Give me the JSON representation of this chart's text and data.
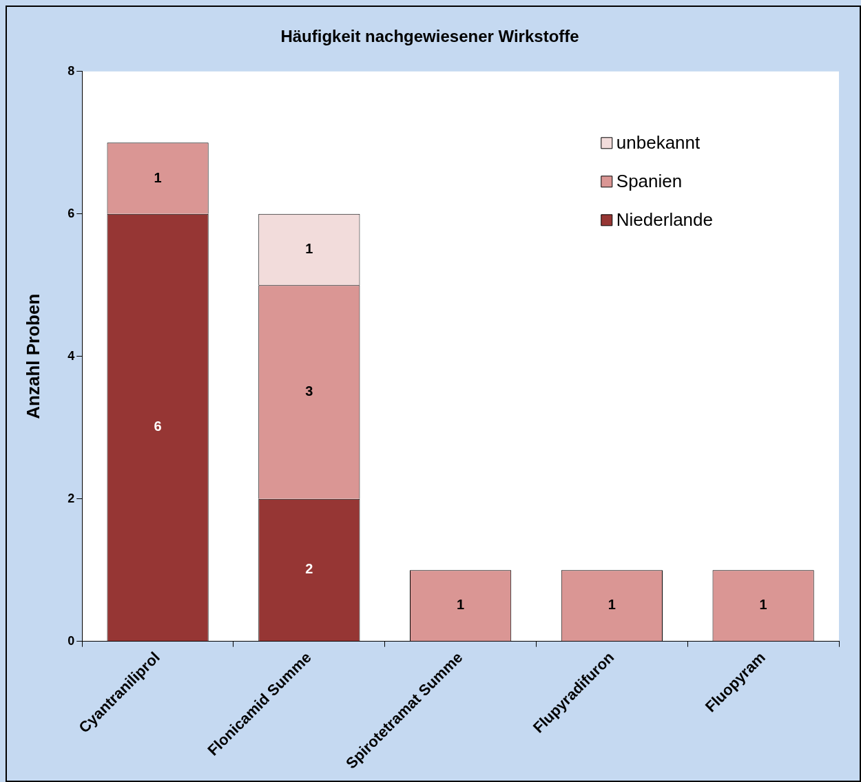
{
  "chart_data": {
    "type": "bar",
    "title": "Häufigkeit nachgewiesener Wirkstoffe",
    "ylabel": "Anzahl Proben",
    "categories": [
      "Cyantraniliprol",
      "Flonicamid Summe",
      "Spirotetramat Summe",
      "Flupyradifuron",
      "Fluopyram"
    ],
    "series": [
      {
        "name": "Niederlande",
        "color": "#963634",
        "values": [
          6,
          2,
          null,
          null,
          null
        ]
      },
      {
        "name": "Spanien",
        "color": "#da9694",
        "values": [
          1,
          3,
          1,
          1,
          1
        ]
      },
      {
        "name": "unbekannt",
        "color": "#f2dcdb",
        "values": [
          null,
          1,
          null,
          null,
          null
        ]
      }
    ],
    "stacked": true,
    "ylim": [
      0,
      8
    ],
    "yticks": [
      0,
      2,
      4,
      6,
      8
    ],
    "grid": false,
    "legend": "top right",
    "data_labels": true
  }
}
